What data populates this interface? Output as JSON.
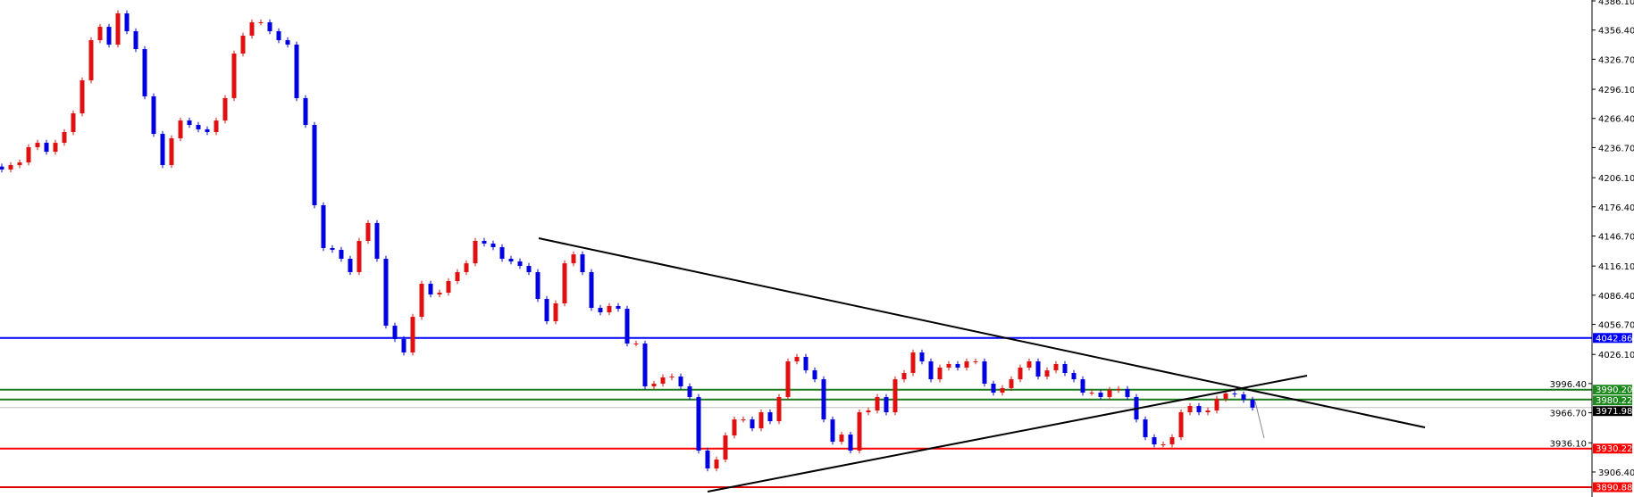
{
  "chart_data": {
    "type": "candlestick",
    "bull_color": "#e01010",
    "bear_color": "#0000e0",
    "ylim": [
      3881.0,
      4386.1
    ],
    "grid": false,
    "y_ticks": [
      "4386.10",
      "4356.40",
      "4326.70",
      "4296.10",
      "4266.40",
      "4236.70",
      "4206.10",
      "4176.40",
      "4146.70",
      "4116.10",
      "4086.40",
      "4056.70",
      "4026.10",
      "3996.40",
      "3966.70",
      "3936.10",
      "3906.40"
    ],
    "close": [
      4214.4,
      4218.9,
      4221.6,
      4237.1,
      4241.6,
      4232.5,
      4241.6,
      4252.5,
      4271.6,
      4305.2,
      4346.1,
      4359.7,
      4341.6,
      4373.4,
      4355.2,
      4337.0,
      4288.9,
      4250.7,
      4218.9,
      4246.2,
      4264.3,
      4259.8,
      4255.3,
      4252.5,
      4264.3,
      4287.1,
      4332.5,
      4350.7,
      4364.3,
      4364.3,
      4355.2,
      4346.1,
      4341.6,
      4287.1,
      4259.8,
      4178.0,
      4134.4,
      4132.6,
      4123.5,
      4109.9,
      4141.7,
      4159.9,
      4123.5,
      4055.4,
      4041.7,
      4028.1,
      4064.4,
      4098.1,
      4087.2,
      4089.0,
      4100.8,
      4109.9,
      4118.9,
      4141.7,
      4139.0,
      4135.3,
      4123.5,
      4120.8,
      4116.2,
      4109.9,
      4082.6,
      4059.9,
      4078.1,
      4118.9,
      4128.0,
      4109.9,
      4073.5,
      4069.0,
      4075.4,
      4072.6,
      4037.2,
      4037.2,
      3993.6,
      3996.3,
      4002.7,
      4003.6,
      3993.6,
      3982.7,
      3928.2,
      3910.0,
      3919.1,
      3943.6,
      3959.9,
      3959.9,
      3950.9,
      3967.2,
      3958.1,
      3982.7,
      4019.0,
      4023.6,
      4009.9,
      4000.8,
      3959.9,
      3937.2,
      3944.5,
      3928.2,
      3967.2,
      3969.0,
      3982.7,
      3967.2,
      4000.8,
      4007.2,
      4028.1,
      4019.0,
      4000.8,
      4012.7,
      4016.3,
      4012.7,
      4019.0,
      4019.0,
      3996.3,
      3987.2,
      3991.8,
      4000.8,
      4012.7,
      4019.0,
      4003.6,
      4009.9,
      4016.3,
      4007.2,
      4000.8,
      3987.2,
      3987.2,
      3982.7,
      3989.9,
      3990.9,
      3982.7,
      3959.9,
      3941.8,
      3934.5,
      3934.5,
      3941.8,
      3967.2,
      3973.6,
      3967.2,
      3969.0,
      3980.9,
      3986.3,
      3985.4,
      3979.9,
      3971.98
    ],
    "horizontal_lines": [
      {
        "price": 4042.86,
        "label": "4042.86",
        "color": "#0000ff",
        "tag_color": "#0000ff"
      },
      {
        "price": 3990.2,
        "label": "3990.20",
        "color": "#1e7b1e",
        "tag_color": "#1e8a1e"
      },
      {
        "price": 3980.22,
        "label": "3980.22",
        "color": "#1e7b1e",
        "tag_color": "#1e8a1e"
      },
      {
        "price": 3971.98,
        "label": "3971.98",
        "color": "#c0c0c0",
        "tag_color": "#000000"
      },
      {
        "price": 3930.22,
        "label": "3930.22",
        "color": "#ff0000",
        "tag_color": "#ff0000"
      },
      {
        "price": 3890.88,
        "label": "3890.88",
        "color": "#e00000",
        "tag_color": "#ff0000"
      }
    ],
    "trendlines": [
      {
        "from_bar": 60.1,
        "from_price": 4144.4,
        "to_bar": 159.3,
        "to_price": 3951.8,
        "color": "#000000"
      },
      {
        "from_bar": 79.0,
        "from_price": 3886.4,
        "to_bar": 146.1,
        "to_price": 4004.5,
        "color": "#000000"
      }
    ]
  }
}
